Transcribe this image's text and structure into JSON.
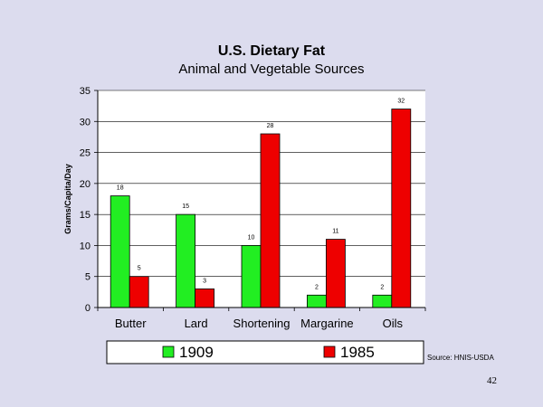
{
  "slide": {
    "page_number": "42",
    "source": "Source: HNIS-USDA"
  },
  "chart_data": {
    "type": "bar",
    "title": "U.S. Dietary Fat",
    "subtitle": "Animal and Vegetable Sources",
    "xlabel": "",
    "ylabel": "Grams/Capita/Day",
    "ylim": [
      0,
      35
    ],
    "yticks": [
      0,
      5,
      10,
      15,
      20,
      25,
      30,
      35
    ],
    "grid": true,
    "legend_position": "bottom",
    "categories": [
      "Butter",
      "Lard",
      "Shortening",
      "Margarine",
      "Oils"
    ],
    "series": [
      {
        "name": "1909",
        "values": [
          18,
          15,
          10,
          2,
          2
        ],
        "color": "#22ee22"
      },
      {
        "name": "1985",
        "values": [
          5,
          3,
          28,
          11,
          32
        ],
        "color": "#ee0000"
      }
    ]
  }
}
